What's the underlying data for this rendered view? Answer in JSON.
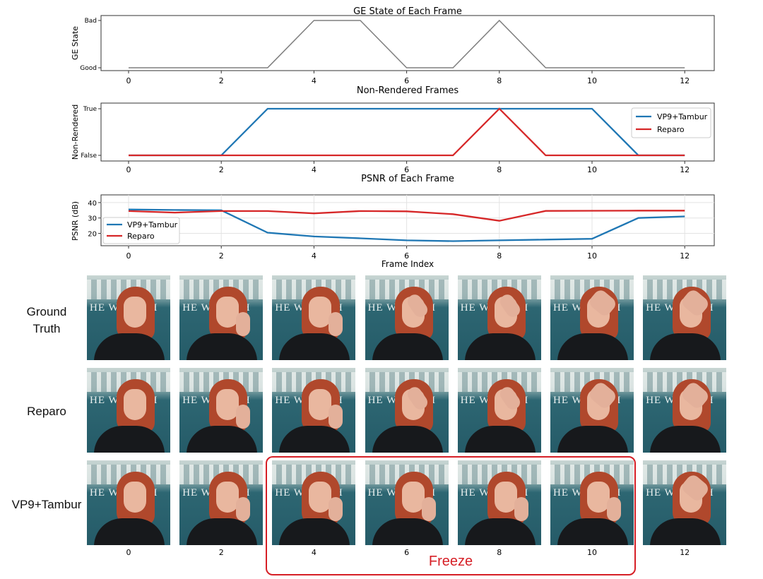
{
  "chart_data": [
    {
      "type": "line",
      "title": "GE State of Each Frame",
      "xlabel": "",
      "ylabel": "GE State",
      "x": [
        0,
        1,
        2,
        3,
        4,
        5,
        6,
        7,
        8,
        9,
        10,
        11,
        12
      ],
      "xticks": [
        "0",
        "2",
        "4",
        "6",
        "8",
        "10",
        "12"
      ],
      "y_categories": [
        "Good",
        "Bad"
      ],
      "series": [
        {
          "name": "GE State",
          "color": "#7f7f7f",
          "values": [
            0,
            0,
            0,
            0,
            1,
            1,
            0,
            0,
            1,
            0,
            0,
            0,
            0
          ]
        }
      ],
      "legend": ""
    },
    {
      "type": "line",
      "title": "Non-Rendered Frames",
      "xlabel": "",
      "ylabel": "Non-Rendered",
      "x": [
        0,
        1,
        2,
        3,
        4,
        5,
        6,
        7,
        8,
        9,
        10,
        11,
        12
      ],
      "xticks": [
        "0",
        "2",
        "4",
        "6",
        "8",
        "10",
        "12"
      ],
      "y_categories": [
        "False",
        "True"
      ],
      "series": [
        {
          "name": "VP9+Tambur",
          "color": "#1f77b4",
          "values": [
            0,
            0,
            0,
            1,
            1,
            1,
            1,
            1,
            1,
            1,
            1,
            0,
            0
          ]
        },
        {
          "name": "Reparo",
          "color": "#d62728",
          "values": [
            0,
            0,
            0,
            0,
            0,
            0,
            0,
            0,
            1,
            0,
            0,
            0,
            0
          ]
        }
      ],
      "legend": "top-right"
    },
    {
      "type": "line",
      "title": "PSNR of Each Frame",
      "xlabel": "Frame Index",
      "ylabel": "PSNR (dB)",
      "x": [
        0,
        1,
        2,
        3,
        4,
        5,
        6,
        7,
        8,
        9,
        10,
        11,
        12
      ],
      "xticks": [
        "0",
        "2",
        "4",
        "6",
        "8",
        "10",
        "12"
      ],
      "yticks": [
        "20",
        "30",
        "40"
      ],
      "ylim": [
        12,
        45
      ],
      "series": [
        {
          "name": "VP9+Tambur",
          "color": "#1f77b4",
          "values": [
            35.5,
            35.2,
            35,
            20.5,
            18,
            16.8,
            15.5,
            15,
            15.5,
            16,
            16.5,
            30,
            31
          ]
        },
        {
          "name": "Reparo",
          "color": "#d62728",
          "values": [
            34.5,
            33.5,
            34.5,
            34.5,
            33,
            34.5,
            34.3,
            32.5,
            28.2,
            34.6,
            34.7,
            34.8,
            34.8
          ]
        }
      ],
      "legend": "bottom-left"
    }
  ],
  "frames": {
    "row_labels": [
      "Ground\nTruth",
      "Reparo",
      "VP9+Tambur"
    ],
    "sign_text": "HE WHITE H",
    "xticks": [
      "0",
      "2",
      "4",
      "6",
      "8",
      "10",
      "12"
    ],
    "frame_indices": [
      0,
      2,
      4,
      6,
      8,
      10,
      12
    ],
    "freeze_label": "Freeze"
  },
  "colors": {
    "vp9": "#1f77b4",
    "reparo": "#d62728",
    "ge": "#7f7f7f",
    "freeze": "#d61f26"
  }
}
